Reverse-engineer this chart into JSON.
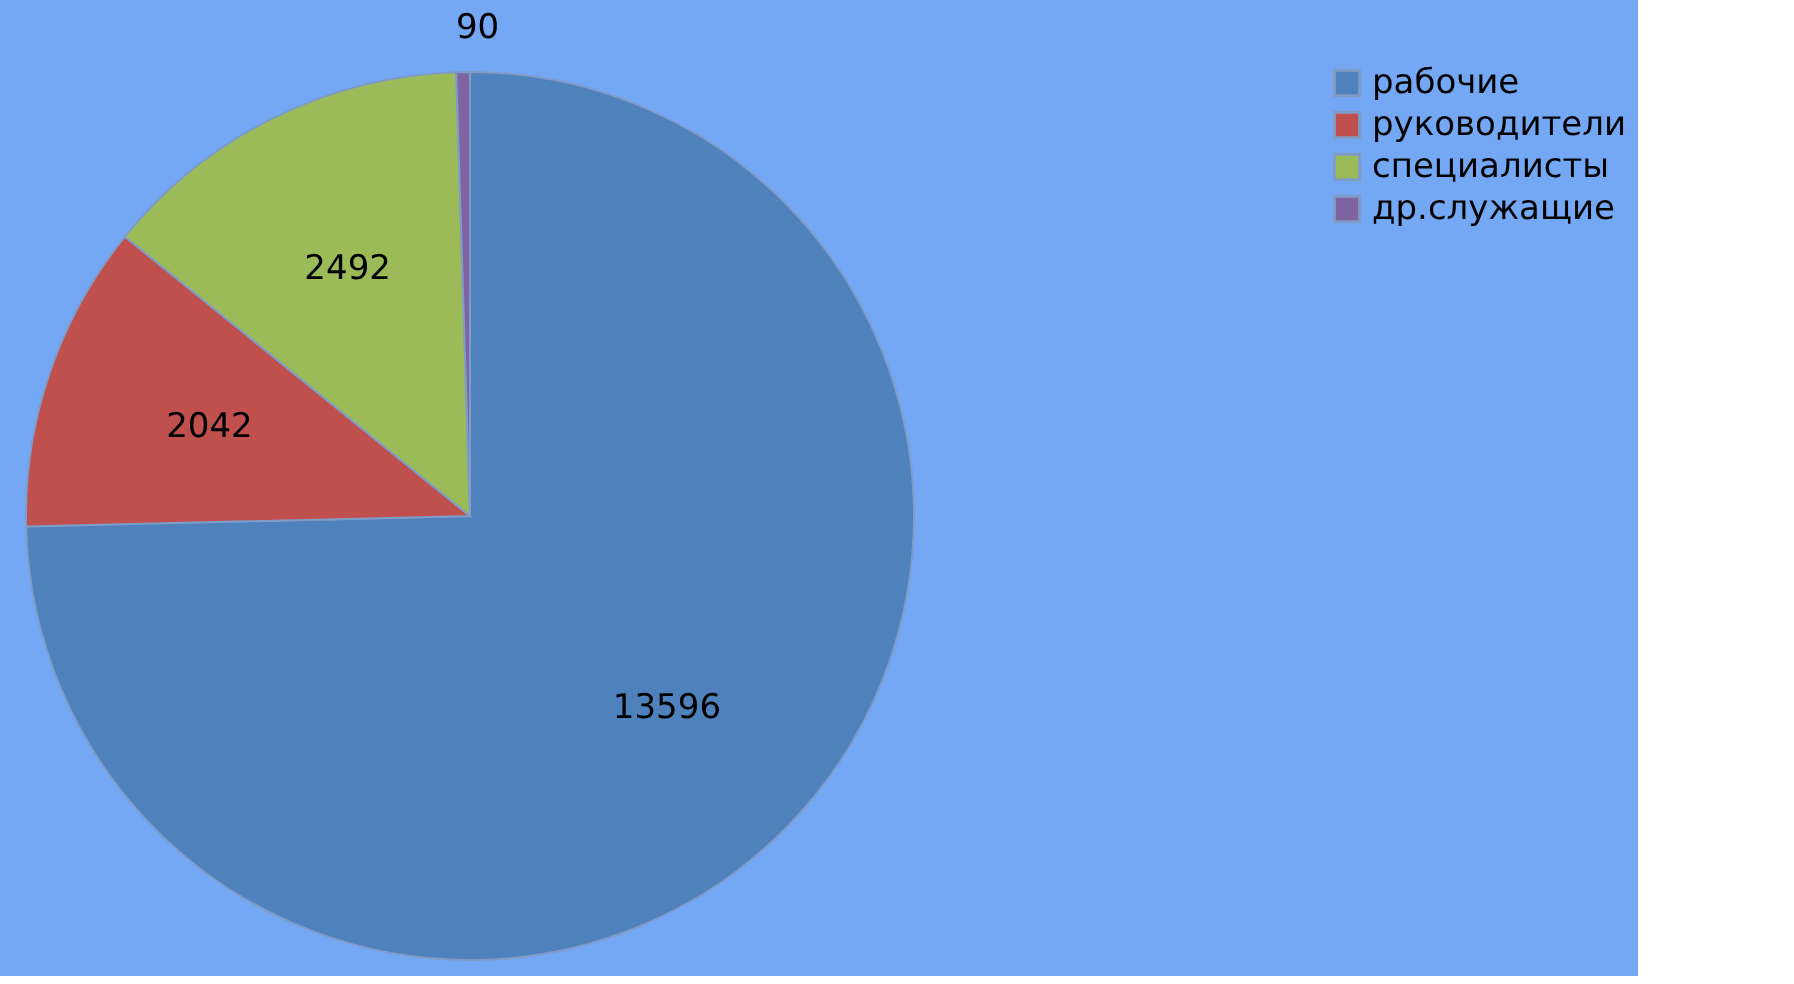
{
  "chart_data": {
    "type": "pie",
    "categories": [
      "рабочие",
      "руководители",
      "специалисты",
      "др.служащие"
    ],
    "values": [
      13596,
      2042,
      2492,
      90
    ],
    "colors": [
      "#4f81bd",
      "#c0504d",
      "#9bbb59",
      "#8064a2"
    ],
    "data_labels": true,
    "legend": "right"
  }
}
